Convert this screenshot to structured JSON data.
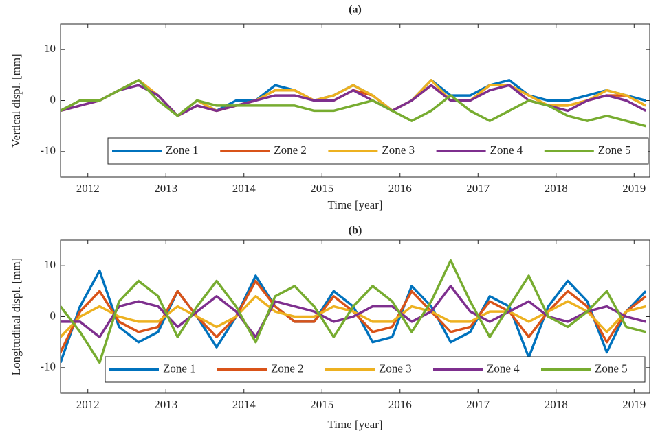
{
  "chart_data": [
    {
      "type": "line",
      "title": "(a)",
      "xlabel": "Time [year]",
      "ylabel": "Vertical displ. [mm]",
      "x": [
        2011.65,
        2011.9,
        2012.15,
        2012.4,
        2012.65,
        2012.9,
        2013.15,
        2013.4,
        2013.65,
        2013.9,
        2014.15,
        2014.4,
        2014.65,
        2014.9,
        2015.15,
        2015.4,
        2015.65,
        2015.9,
        2016.15,
        2016.4,
        2016.65,
        2016.9,
        2017.15,
        2017.4,
        2017.65,
        2017.9,
        2018.15,
        2018.4,
        2018.65,
        2018.9,
        2019.15
      ],
      "series": [
        {
          "name": "Zone 1",
          "color": "#0072bd",
          "values": [
            -2,
            0,
            0,
            2,
            4,
            1,
            -3,
            0,
            -2,
            0,
            0,
            3,
            2,
            0,
            1,
            3,
            1,
            -2,
            0,
            4,
            1,
            1,
            3,
            4,
            1,
            0,
            0,
            1,
            2,
            1,
            0
          ]
        },
        {
          "name": "Zone 2",
          "color": "#d95319",
          "values": [
            -2,
            0,
            0,
            2,
            4,
            1,
            -3,
            -1,
            -2,
            -1,
            0,
            2,
            2,
            0,
            0,
            2,
            1,
            -2,
            0,
            3,
            0,
            0,
            3,
            3,
            1,
            -1,
            -1,
            0,
            1,
            1,
            -1
          ]
        },
        {
          "name": "Zone 3",
          "color": "#edb120",
          "values": [
            -2,
            -1,
            0,
            2,
            4,
            1,
            -3,
            0,
            -2,
            -1,
            0,
            2,
            2,
            0,
            1,
            3,
            1,
            -2,
            0,
            4,
            0,
            0,
            3,
            3,
            1,
            -1,
            -1,
            0,
            2,
            1,
            -1
          ]
        },
        {
          "name": "Zone 4",
          "color": "#7e2f8e",
          "values": [
            -2,
            -1,
            0,
            2,
            3,
            1,
            -3,
            -1,
            -2,
            -1,
            0,
            1,
            1,
            0,
            0,
            2,
            0,
            -2,
            0,
            3,
            0,
            0,
            2,
            3,
            0,
            -1,
            -2,
            0,
            1,
            0,
            -2
          ]
        },
        {
          "name": "Zone 5",
          "color": "#77ac30",
          "values": [
            -2,
            0,
            0,
            2,
            4,
            0,
            -3,
            0,
            -1,
            -1,
            -1,
            -1,
            -1,
            -2,
            -2,
            -1,
            0,
            -2,
            -4,
            -2,
            1,
            -2,
            -4,
            -2,
            0,
            -1,
            -3,
            -4,
            -3,
            -4,
            -5
          ]
        }
      ],
      "xlim": [
        2011.65,
        2019.2
      ],
      "xticks": [
        2012,
        2013,
        2014,
        2015,
        2016,
        2017,
        2018,
        2019
      ],
      "ylim": [
        -15,
        15
      ],
      "yticks": [
        -10,
        0,
        10
      ],
      "legend": "lower center"
    },
    {
      "type": "line",
      "title": "(b)",
      "xlabel": "Time [year]",
      "ylabel": "Longitudinal displ. [mm]",
      "x": [
        2011.65,
        2011.9,
        2012.15,
        2012.4,
        2012.65,
        2012.9,
        2013.15,
        2013.4,
        2013.65,
        2013.9,
        2014.15,
        2014.4,
        2014.65,
        2014.9,
        2015.15,
        2015.4,
        2015.65,
        2015.9,
        2016.15,
        2016.4,
        2016.65,
        2016.9,
        2017.15,
        2017.4,
        2017.65,
        2017.9,
        2018.15,
        2018.4,
        2018.65,
        2018.9,
        2019.15
      ],
      "series": [
        {
          "name": "Zone 1",
          "color": "#0072bd",
          "values": [
            -9,
            2,
            9,
            -2,
            -5,
            -3,
            5,
            0,
            -6,
            0,
            8,
            2,
            -1,
            -1,
            5,
            2,
            -5,
            -4,
            6,
            2,
            -5,
            -3,
            4,
            2,
            -8,
            2,
            7,
            3,
            -7,
            1,
            5
          ]
        },
        {
          "name": "Zone 2",
          "color": "#d95319",
          "values": [
            -7,
            1,
            5,
            -1,
            -3,
            -2,
            5,
            0,
            -4,
            0,
            7,
            2,
            -1,
            -1,
            4,
            1,
            -3,
            -2,
            5,
            1,
            -3,
            -2,
            3,
            1,
            -4,
            1,
            5,
            2,
            -5,
            1,
            4
          ]
        },
        {
          "name": "Zone 3",
          "color": "#edb120",
          "values": [
            -4,
            0,
            2,
            0,
            -1,
            -1,
            2,
            0,
            -2,
            0,
            4,
            1,
            0,
            0,
            2,
            1,
            -1,
            -1,
            2,
            1,
            -1,
            -1,
            1,
            1,
            -1,
            1,
            3,
            1,
            -3,
            1,
            2
          ]
        },
        {
          "name": "Zone 4",
          "color": "#7e2f8e",
          "values": [
            -1,
            -1,
            -4,
            2,
            3,
            2,
            -2,
            1,
            4,
            1,
            -4,
            3,
            2,
            1,
            -1,
            0,
            2,
            2,
            -1,
            1,
            6,
            1,
            -1,
            1,
            3,
            0,
            -1,
            1,
            2,
            0,
            -1
          ]
        },
        {
          "name": "Zone 5",
          "color": "#77ac30",
          "values": [
            2,
            -3,
            -9,
            3,
            7,
            4,
            -4,
            2,
            7,
            2,
            -5,
            4,
            6,
            2,
            -4,
            2,
            6,
            3,
            -3,
            3,
            11,
            3,
            -4,
            2,
            8,
            0,
            -2,
            1,
            5,
            -2,
            -3
          ]
        }
      ],
      "xlim": [
        2011.65,
        2019.2
      ],
      "xticks": [
        2012,
        2013,
        2014,
        2015,
        2016,
        2017,
        2018,
        2019
      ],
      "ylim": [
        -15,
        15
      ],
      "yticks": [
        -10,
        0,
        10
      ],
      "legend": "lower center"
    }
  ]
}
